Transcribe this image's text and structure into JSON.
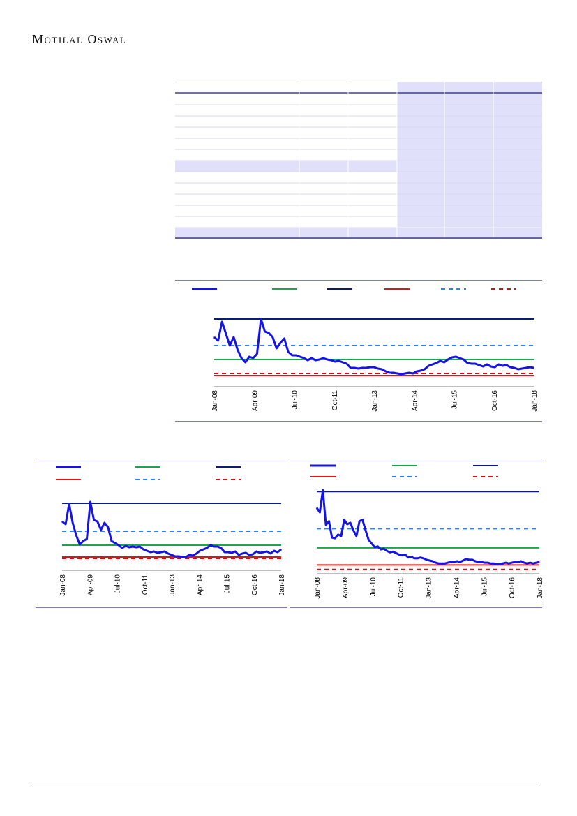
{
  "header": {
    "brand": "Motilal Oswal"
  },
  "table": {
    "bands": [
      false,
      false,
      false,
      false,
      false,
      false,
      true,
      false,
      false,
      false,
      false,
      false,
      true
    ],
    "shaded_from_column": 3
  },
  "legend_colors": {
    "series": "#1414e6",
    "peak": "#0a1a80",
    "avg": "#1aa64a",
    "trough": "#e01414",
    "plus_1sd": "#2e7ff0",
    "minus_1sd": "#cc1111"
  },
  "chart_data": [
    {
      "type": "line",
      "x_labels": [
        "Jan-08",
        "Apr-09",
        "Jul-10",
        "Oct-11",
        "Jan-13",
        "Apr-14",
        "Jul-15",
        "Oct-16",
        "Jan-18"
      ],
      "ylim": [
        0,
        100
      ],
      "series": [
        {
          "color": "#1414e6",
          "values": [
            70,
            65,
            92,
            75,
            58,
            70,
            52,
            40,
            34,
            42,
            40,
            46,
            96,
            78,
            76,
            70,
            54,
            62,
            68,
            49,
            44,
            44,
            42,
            40,
            37,
            40,
            37,
            38,
            40,
            38,
            37,
            35,
            36,
            34,
            32,
            26,
            26,
            25,
            26,
            26,
            27,
            27,
            25,
            24,
            21,
            19,
            19,
            18,
            17,
            18,
            19,
            18,
            21,
            22,
            24,
            29,
            31,
            33,
            36,
            34,
            38,
            41,
            42,
            40,
            38,
            33,
            32,
            32,
            30,
            28,
            31,
            28,
            27,
            31,
            29,
            30,
            27,
            26,
            24,
            25,
            26,
            27,
            26
          ]
        }
      ],
      "reference_lines": [
        {
          "kind": "peak",
          "value": 96,
          "style": "solid",
          "color": "#0a1a80"
        },
        {
          "kind": "plus_1sd",
          "value": 58,
          "style": "dashed",
          "color": "#2e7ff0"
        },
        {
          "kind": "avg",
          "value": 38,
          "style": "solid",
          "color": "#1aa64a"
        },
        {
          "kind": "minus_1sd",
          "value": 18,
          "style": "dashed",
          "color": "#cc1111"
        },
        {
          "kind": "trough",
          "value": 15,
          "style": "solid",
          "color": "#e01414"
        }
      ]
    },
    {
      "type": "line",
      "x_labels": [
        "Jan-08",
        "Apr-09",
        "Jul-10",
        "Oct-11",
        "Jan-13",
        "Apr-14",
        "Jul-15",
        "Oct-16",
        "Jan-18"
      ],
      "ylim": [
        0,
        100
      ],
      "series": [
        {
          "color": "#1414e6",
          "values": [
            70,
            66,
            95,
            68,
            50,
            37,
            42,
            45,
            98,
            72,
            70,
            58,
            68,
            62,
            42,
            39,
            36,
            32,
            35,
            33,
            34,
            33,
            34,
            30,
            28,
            26,
            27,
            25,
            26,
            27,
            24,
            22,
            20,
            20,
            19,
            19,
            22,
            21,
            24,
            28,
            30,
            32,
            36,
            34,
            34,
            32,
            26,
            26,
            25,
            27,
            22,
            24,
            25,
            22,
            23,
            27,
            25,
            26,
            27,
            24,
            28,
            26,
            30
          ]
        }
      ],
      "reference_lines": [
        {
          "kind": "peak",
          "value": 96,
          "style": "solid",
          "color": "#0a1a80"
        },
        {
          "kind": "plus_1sd",
          "value": 56,
          "style": "dashed",
          "color": "#2e7ff0"
        },
        {
          "kind": "avg",
          "value": 36,
          "style": "solid",
          "color": "#1aa64a"
        },
        {
          "kind": "trough",
          "value": 19,
          "style": "solid",
          "color": "#e01414"
        },
        {
          "kind": "minus_1sd",
          "value": 17,
          "style": "dashed",
          "color": "#cc1111"
        }
      ]
    },
    {
      "type": "line",
      "x_labels": [
        "Jan-08",
        "Apr-09",
        "Jul-10",
        "Oct-11",
        "Jan-13",
        "Apr-14",
        "Jul-15",
        "Oct-16",
        "Jan-18"
      ],
      "ylim": [
        0,
        100
      ],
      "series": [
        {
          "color": "#1414e6",
          "values": [
            88,
            82,
            112,
            65,
            70,
            48,
            47,
            52,
            50,
            72,
            66,
            68,
            58,
            50,
            70,
            72,
            58,
            45,
            40,
            35,
            36,
            32,
            33,
            30,
            28,
            29,
            27,
            25,
            24,
            25,
            21,
            22,
            20,
            20,
            21,
            20,
            18,
            17,
            16,
            14,
            13,
            13,
            13,
            14,
            15,
            15,
            16,
            15,
            17,
            19,
            18,
            18,
            16,
            15,
            15,
            14,
            14,
            13,
            13,
            12,
            12,
            13,
            14,
            13,
            14,
            15,
            15,
            16,
            14,
            13,
            14,
            13,
            14,
            15
          ]
        }
      ],
      "reference_lines": [
        {
          "kind": "peak",
          "value": 110,
          "style": "solid",
          "color": "#0a1a80"
        },
        {
          "kind": "plus_1sd",
          "value": 60,
          "style": "dashed",
          "color": "#2e7ff0"
        },
        {
          "kind": "avg",
          "value": 34,
          "style": "solid",
          "color": "#1aa64a"
        },
        {
          "kind": "trough",
          "value": 11,
          "style": "solid",
          "color": "#e01414"
        },
        {
          "kind": "minus_1sd",
          "value": 5,
          "style": "dashed",
          "color": "#cc1111"
        }
      ],
      "ylim_override": [
        0,
        115
      ]
    }
  ]
}
